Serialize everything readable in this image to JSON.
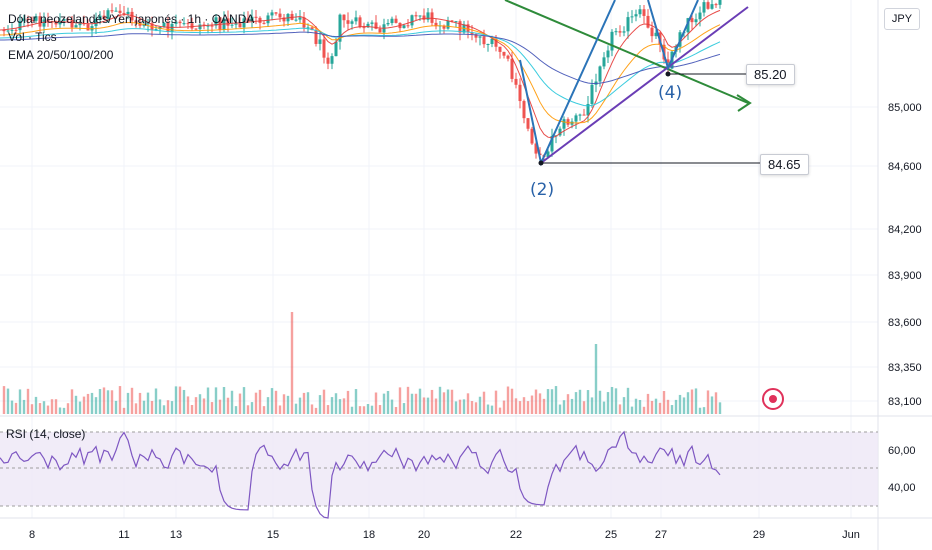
{
  "legend": {
    "title": "Dólar neozelandés/Yen japonés · 1h · OANDA",
    "vol_label": "Vol · Tics",
    "ema_label": "EMA 20/50/100/200"
  },
  "currency": "JPY",
  "rsi_label": "RSI (14, close)",
  "callouts": {
    "p1": "85.20",
    "p2": "84.65"
  },
  "wave_labels": {
    "w2": "(2)",
    "w4": "(4)"
  },
  "colors": {
    "up": "#26a69a",
    "down": "#ef5350",
    "rsi": "#7e57c2",
    "wedge_upper": "#2e8b3a",
    "wedge_lower": "#6a3db5",
    "wave": "#2b74b8",
    "alert": "#e0315a"
  },
  "chart_data": {
    "type": "candlestick",
    "x_ticks": [
      "8",
      "11",
      "13",
      "15",
      "18",
      "20",
      "22",
      "25",
      "27",
      "29",
      "Jun"
    ],
    "y_axis": {
      "ticks": [
        "85,000",
        "84,600",
        "84,200",
        "83,900",
        "83,600",
        "83,350",
        "83,100"
      ]
    },
    "price_annotations": [
      {
        "label": "(2)",
        "price": 84.65
      },
      {
        "label": "(4)",
        "price": 85.2
      }
    ],
    "rsi": {
      "ticks": [
        "60,00",
        "40,00"
      ],
      "period": 14
    }
  }
}
